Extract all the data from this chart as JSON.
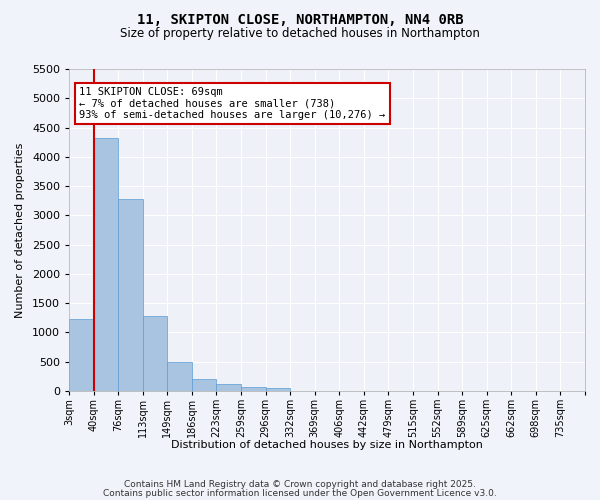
{
  "title": "11, SKIPTON CLOSE, NORTHAMPTON, NN4 0RB",
  "subtitle": "Size of property relative to detached houses in Northampton",
  "xlabel": "Distribution of detached houses by size in Northampton",
  "ylabel": "Number of detached properties",
  "categories": [
    "3sqm",
    "40sqm",
    "76sqm",
    "113sqm",
    "149sqm",
    "186sqm",
    "223sqm",
    "259sqm",
    "296sqm",
    "332sqm",
    "369sqm",
    "406sqm",
    "442sqm",
    "479sqm",
    "515sqm",
    "552sqm",
    "589sqm",
    "625sqm",
    "662sqm",
    "698sqm",
    "735sqm"
  ],
  "bar_values": [
    1220,
    4320,
    3280,
    1270,
    490,
    195,
    120,
    60,
    40,
    0,
    0,
    0,
    0,
    0,
    0,
    0,
    0,
    0,
    0,
    0,
    0
  ],
  "bar_color": "#a8c4e0",
  "bar_edge_color": "#5b9bd5",
  "property_line_x": 1.0,
  "annotation_title": "11 SKIPTON CLOSE: 69sqm",
  "annotation_line1": "← 7% of detached houses are smaller (738)",
  "annotation_line2": "93% of semi-detached houses are larger (10,276) →",
  "annotation_box_color": "#ffffff",
  "annotation_box_edge": "#cc0000",
  "line_color": "#cc0000",
  "ylim": [
    0,
    5500
  ],
  "yticks": [
    0,
    500,
    1000,
    1500,
    2000,
    2500,
    3000,
    3500,
    4000,
    4500,
    5000,
    5500
  ],
  "bg_color": "#eef2f8",
  "fig_bg_color": "#f0f4fa",
  "grid_color": "#ffffff",
  "footer_line1": "Contains HM Land Registry data © Crown copyright and database right 2025.",
  "footer_line2": "Contains public sector information licensed under the Open Government Licence v3.0."
}
